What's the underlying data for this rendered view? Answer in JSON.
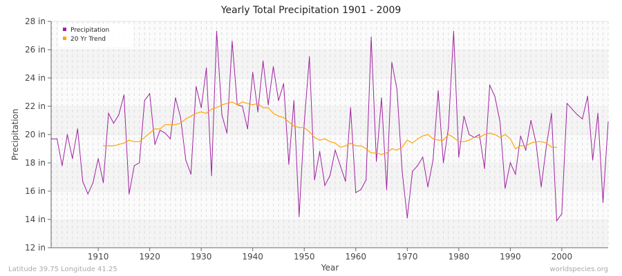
{
  "chart_data": {
    "type": "line",
    "title": "Yearly Total Precipitation 1901 - 2009",
    "xlabel": "Year",
    "ylabel": "Precipitation",
    "ylim": [
      12,
      28
    ],
    "xlim": [
      1901,
      2009
    ],
    "yticks": [
      "12 in",
      "14 in",
      "16 in",
      "18 in",
      "20 in",
      "22 in",
      "24 in",
      "26 in",
      "28 in"
    ],
    "ytick_values": [
      12,
      14,
      16,
      18,
      20,
      22,
      24,
      26,
      28
    ],
    "xticks": [
      1910,
      1920,
      1930,
      1940,
      1950,
      1960,
      1970,
      1980,
      1990,
      2000
    ],
    "grid": true,
    "legend_position": "top-left",
    "series": [
      {
        "name": "Precipitation",
        "color": "#a020a0",
        "start_year": 1901,
        "values": [
          19.7,
          19.7,
          17.8,
          20.0,
          18.3,
          20.4,
          16.7,
          15.8,
          16.6,
          18.3,
          16.6,
          21.5,
          20.8,
          21.4,
          22.8,
          15.8,
          17.8,
          18.0,
          22.4,
          22.9,
          19.3,
          20.3,
          20.1,
          19.7,
          22.6,
          21.2,
          18.2,
          17.2,
          23.4,
          21.9,
          24.7,
          17.1,
          27.3,
          21.4,
          20.1,
          26.6,
          22.1,
          22.0,
          20.4,
          24.4,
          21.6,
          25.2,
          22.1,
          24.8,
          22.4,
          23.6,
          17.9,
          22.4,
          14.2,
          20.8,
          25.5,
          16.8,
          18.8,
          16.4,
          17.1,
          18.9,
          17.8,
          16.7,
          21.9,
          15.9,
          16.1,
          16.8,
          26.9,
          18.1,
          22.6,
          16.1,
          25.1,
          23.2,
          17.4,
          14.1,
          17.4,
          17.8,
          18.4,
          16.3,
          18.2,
          23.1,
          18.0,
          20.5,
          27.3,
          18.4,
          21.3,
          20.0,
          19.8,
          20.0,
          17.6,
          23.5,
          22.7,
          20.9,
          16.2,
          18.0,
          17.2,
          19.9,
          18.9,
          21.0,
          19.4,
          16.3,
          19.2,
          21.5,
          13.9,
          14.4,
          22.2,
          21.8,
          21.4,
          21.1,
          22.7,
          18.2,
          21.5,
          15.2,
          20.9
        ]
      },
      {
        "name": "20 Yr Trend",
        "color": "#ffa500",
        "start_year": 1911,
        "values": [
          19.2,
          19.2,
          19.2,
          19.3,
          19.4,
          19.6,
          19.5,
          19.5,
          19.8,
          20.1,
          20.4,
          20.4,
          20.7,
          20.7,
          20.7,
          20.8,
          21.1,
          21.3,
          21.5,
          21.6,
          21.5,
          21.8,
          21.9,
          22.1,
          22.2,
          22.3,
          22.1,
          22.3,
          22.2,
          22.1,
          22.2,
          21.9,
          21.9,
          21.5,
          21.3,
          21.2,
          20.9,
          20.6,
          20.5,
          20.5,
          20.2,
          19.8,
          19.6,
          19.7,
          19.5,
          19.4,
          19.1,
          19.2,
          19.4,
          19.2,
          19.2,
          19.0,
          18.7,
          18.7,
          18.6,
          18.7,
          19.0,
          18.9,
          19.1,
          19.6,
          19.4,
          19.7,
          19.9,
          20.0,
          19.7,
          19.6,
          19.6,
          20.0,
          19.8,
          19.5,
          19.5,
          19.6,
          19.8,
          19.8,
          20.0,
          20.1,
          20.0,
          19.8,
          20.0,
          19.7,
          19.0,
          19.2,
          19.2,
          19.4,
          19.5,
          19.5,
          19.4,
          19.1,
          19.1
        ]
      }
    ]
  },
  "footer": {
    "left": "Latitude 39.75 Longitude 41.25",
    "right": "worldspecies.org"
  }
}
